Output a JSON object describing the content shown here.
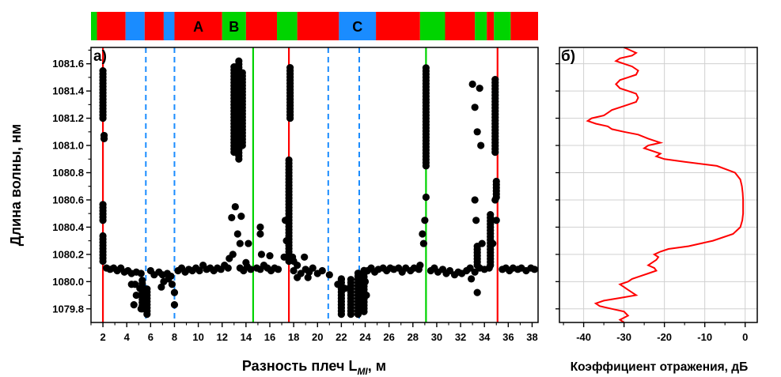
{
  "chart_data": [
    {
      "panel_label": "а)",
      "type": "scatter",
      "xlabel_main": "Разность плеч L",
      "xlabel_sub": "MI",
      "xlabel_unit": ", м",
      "ylabel": "Длина волны, нм",
      "xlim": [
        1.0,
        38.5
      ],
      "ylim": [
        1079.7,
        1081.72
      ],
      "xticks": [
        2,
        4,
        6,
        8,
        10,
        12,
        14,
        16,
        18,
        20,
        22,
        24,
        26,
        28,
        30,
        32,
        34,
        36,
        38
      ],
      "yticks": [
        1079.8,
        1080.0,
        1080.2,
        1080.4,
        1080.6,
        1080.8,
        1081.0,
        1081.2,
        1081.4,
        1081.6
      ],
      "ytick_labels": [
        "1079.8",
        "1080.0",
        "1080.2",
        "1080.4",
        "1080.6",
        "1080.8",
        "1081.0",
        "1081.2",
        "1081.4",
        "1081.6"
      ],
      "grid": false,
      "colors": {
        "red": "#ff0000",
        "green": "#00d400",
        "blue": "#1a8cff",
        "points": "#000000"
      },
      "color_bands": [
        {
          "x0": 1.0,
          "x1": 1.5,
          "color": "green",
          "label": ""
        },
        {
          "x0": 1.5,
          "x1": 3.9,
          "color": "red",
          "label": ""
        },
        {
          "x0": 3.9,
          "x1": 5.5,
          "color": "blue",
          "label": ""
        },
        {
          "x0": 5.5,
          "x1": 7.1,
          "color": "red",
          "label": ""
        },
        {
          "x0": 7.1,
          "x1": 8.0,
          "color": "blue",
          "label": ""
        },
        {
          "x0": 8.0,
          "x1": 12.0,
          "color": "red",
          "label": "A"
        },
        {
          "x0": 12.0,
          "x1": 14.0,
          "color": "green",
          "label": "B"
        },
        {
          "x0": 14.0,
          "x1": 16.6,
          "color": "red",
          "label": ""
        },
        {
          "x0": 16.6,
          "x1": 18.3,
          "color": "green",
          "label": ""
        },
        {
          "x0": 18.3,
          "x1": 21.8,
          "color": "red",
          "label": ""
        },
        {
          "x0": 21.8,
          "x1": 24.9,
          "color": "blue",
          "label": "C"
        },
        {
          "x0": 24.9,
          "x1": 28.6,
          "color": "red",
          "label": ""
        },
        {
          "x0": 28.6,
          "x1": 30.7,
          "color": "green",
          "label": ""
        },
        {
          "x0": 30.7,
          "x1": 33.2,
          "color": "red",
          "label": ""
        },
        {
          "x0": 33.2,
          "x1": 34.2,
          "color": "green",
          "label": ""
        },
        {
          "x0": 34.2,
          "x1": 34.8,
          "color": "red",
          "label": ""
        },
        {
          "x0": 34.8,
          "x1": 36.2,
          "color": "green",
          "label": ""
        },
        {
          "x0": 36.2,
          "x1": 38.5,
          "color": "red",
          "label": ""
        }
      ],
      "vertical_lines": [
        {
          "x": 2.0,
          "color": "red",
          "style": "solid"
        },
        {
          "x": 5.6,
          "color": "blue",
          "style": "dashed"
        },
        {
          "x": 8.0,
          "color": "blue",
          "style": "dashed"
        },
        {
          "x": 14.6,
          "color": "green",
          "style": "solid"
        },
        {
          "x": 17.6,
          "color": "red",
          "style": "solid"
        },
        {
          "x": 20.9,
          "color": "blue",
          "style": "dashed"
        },
        {
          "x": 23.5,
          "color": "blue",
          "style": "dashed"
        },
        {
          "x": 29.1,
          "color": "green",
          "style": "solid"
        },
        {
          "x": 35.1,
          "color": "red",
          "style": "solid"
        }
      ],
      "baseline_points": [
        [
          2.3,
          1080.1
        ],
        [
          2.6,
          1080.09
        ],
        [
          2.9,
          1080.1
        ],
        [
          3.2,
          1080.08
        ],
        [
          3.5,
          1080.1
        ],
        [
          3.8,
          1080.07
        ],
        [
          4.1,
          1080.08
        ],
        [
          4.4,
          1080.06
        ],
        [
          4.8,
          1080.07
        ],
        [
          5.2,
          1080.06
        ],
        [
          6.0,
          1080.08
        ],
        [
          6.3,
          1080.05
        ],
        [
          6.7,
          1080.07
        ],
        [
          7.0,
          1080.05
        ],
        [
          7.4,
          1080.06
        ],
        [
          7.7,
          1080.04
        ],
        [
          8.3,
          1080.08
        ],
        [
          8.6,
          1080.1
        ],
        [
          8.9,
          1080.07
        ],
        [
          9.2,
          1080.09
        ],
        [
          9.5,
          1080.08
        ],
        [
          9.8,
          1080.1
        ],
        [
          10.1,
          1080.08
        ],
        [
          10.4,
          1080.12
        ],
        [
          10.7,
          1080.09
        ],
        [
          11.0,
          1080.1
        ],
        [
          11.3,
          1080.08
        ],
        [
          11.6,
          1080.1
        ],
        [
          11.9,
          1080.09
        ],
        [
          12.2,
          1080.12
        ],
        [
          12.5,
          1080.1
        ],
        [
          13.5,
          1080.1
        ],
        [
          13.8,
          1080.08
        ],
        [
          14.1,
          1080.11
        ],
        [
          14.4,
          1080.09
        ],
        [
          14.9,
          1080.1
        ],
        [
          15.2,
          1080.09
        ],
        [
          15.5,
          1080.12
        ],
        [
          15.8,
          1080.1
        ],
        [
          16.1,
          1080.08
        ],
        [
          16.4,
          1080.1
        ],
        [
          16.7,
          1080.09
        ],
        [
          18.0,
          1080.08
        ],
        [
          18.3,
          1080.12
        ],
        [
          18.6,
          1080.06
        ],
        [
          19.0,
          1080.09
        ],
        [
          19.3,
          1080.07
        ],
        [
          19.6,
          1080.1
        ],
        [
          20.0,
          1080.06
        ],
        [
          20.4,
          1080.08
        ],
        [
          21.0,
          1080.05
        ],
        [
          24.2,
          1080.08
        ],
        [
          24.5,
          1080.1
        ],
        [
          24.8,
          1080.07
        ],
        [
          25.1,
          1080.09
        ],
        [
          25.5,
          1080.1
        ],
        [
          25.8,
          1080.08
        ],
        [
          26.1,
          1080.1
        ],
        [
          26.4,
          1080.09
        ],
        [
          26.8,
          1080.1
        ],
        [
          27.1,
          1080.07
        ],
        [
          27.4,
          1080.1
        ],
        [
          27.8,
          1080.08
        ],
        [
          28.1,
          1080.1
        ],
        [
          28.5,
          1080.09
        ],
        [
          29.5,
          1080.08
        ],
        [
          29.8,
          1080.1
        ],
        [
          30.1,
          1080.07
        ],
        [
          30.5,
          1080.09
        ],
        [
          30.8,
          1080.06
        ],
        [
          31.1,
          1080.08
        ],
        [
          31.5,
          1080.05
        ],
        [
          31.8,
          1080.07
        ],
        [
          32.1,
          1080.06
        ],
        [
          32.5,
          1080.08
        ],
        [
          32.8,
          1080.1
        ],
        [
          33.2,
          1080.07
        ],
        [
          33.6,
          1080.1
        ],
        [
          34.0,
          1080.09
        ],
        [
          34.4,
          1080.1
        ],
        [
          35.5,
          1080.09
        ],
        [
          35.8,
          1080.1
        ],
        [
          36.1,
          1080.08
        ],
        [
          36.4,
          1080.1
        ],
        [
          36.8,
          1080.09
        ],
        [
          37.1,
          1080.1
        ],
        [
          37.5,
          1080.08
        ],
        [
          37.9,
          1080.1
        ],
        [
          38.2,
          1080.09
        ]
      ],
      "extra_points": [
        [
          4.7,
          1079.98
        ],
        [
          5.1,
          1079.95
        ],
        [
          5.3,
          1079.91
        ],
        [
          5.5,
          1079.86
        ],
        [
          4.6,
          1079.83
        ],
        [
          5.2,
          1079.8
        ],
        [
          4.8,
          1079.9
        ],
        [
          4.4,
          1079.98
        ],
        [
          6.9,
          1079.96
        ],
        [
          7.1,
          1080.0
        ],
        [
          7.8,
          1079.98
        ],
        [
          8.0,
          1079.92
        ],
        [
          8.0,
          1079.83
        ],
        [
          7.5,
          1080.02
        ],
        [
          12.9,
          1080.2
        ],
        [
          13.3,
          1080.35
        ],
        [
          13.6,
          1080.48
        ],
        [
          12.8,
          1080.47
        ],
        [
          13.1,
          1080.55
        ],
        [
          13.5,
          1080.28
        ],
        [
          12.6,
          1080.17
        ],
        [
          14.2,
          1080.28
        ],
        [
          14.0,
          1080.14
        ],
        [
          15.3,
          1080.2
        ],
        [
          15.2,
          1080.35
        ],
        [
          15.2,
          1080.4
        ],
        [
          16.0,
          1080.19
        ],
        [
          17.2,
          1080.18
        ],
        [
          17.4,
          1080.3
        ],
        [
          17.3,
          1080.45
        ],
        [
          17.9,
          1080.18
        ],
        [
          18.0,
          1080.15
        ],
        [
          18.3,
          1080.03
        ],
        [
          18.9,
          1080.18
        ],
        [
          19.2,
          1080.03
        ],
        [
          21.7,
          1079.98
        ],
        [
          22.0,
          1080.02
        ],
        [
          22.3,
          1079.95
        ],
        [
          23.7,
          1080.03
        ],
        [
          24.0,
          1080.0
        ],
        [
          24.1,
          1079.9
        ],
        [
          28.6,
          1080.12
        ],
        [
          28.9,
          1080.28
        ],
        [
          29.0,
          1080.45
        ],
        [
          29.1,
          1080.62
        ],
        [
          28.8,
          1080.35
        ],
        [
          32.9,
          1080.02
        ],
        [
          33.4,
          1079.92
        ],
        [
          33.8,
          1080.28
        ],
        [
          33.3,
          1080.45
        ],
        [
          33.2,
          1080.6
        ],
        [
          33.6,
          1081.42
        ],
        [
          33.0,
          1081.45
        ],
        [
          33.2,
          1081.28
        ],
        [
          33.4,
          1081.1
        ],
        [
          33.7,
          1081.0
        ],
        [
          34.9,
          1080.6
        ],
        [
          35.0,
          1080.45
        ],
        [
          34.7,
          1080.28
        ]
      ],
      "columns": [
        {
          "x": 2.0,
          "y0": 1080.15,
          "y1": 1080.35
        },
        {
          "x": 2.0,
          "y0": 1080.45,
          "y1": 1080.57
        },
        {
          "x": 2.0,
          "y0": 1081.2,
          "y1": 1081.56
        },
        {
          "x": 2.1,
          "y0": 1081.05,
          "y1": 1081.08
        },
        {
          "x": 5.3,
          "y0": 1079.8,
          "y1": 1080.02
        },
        {
          "x": 5.7,
          "y0": 1079.76,
          "y1": 1079.96
        },
        {
          "x": 13.0,
          "y0": 1080.95,
          "y1": 1081.6
        },
        {
          "x": 13.4,
          "y0": 1080.9,
          "y1": 1081.62
        },
        {
          "x": 13.7,
          "y0": 1081.0,
          "y1": 1081.55
        },
        {
          "x": 17.6,
          "y0": 1080.15,
          "y1": 1080.9
        },
        {
          "x": 17.7,
          "y0": 1081.2,
          "y1": 1081.58
        },
        {
          "x": 22.0,
          "y0": 1079.76,
          "y1": 1080.03
        },
        {
          "x": 22.8,
          "y0": 1079.76,
          "y1": 1080.02
        },
        {
          "x": 23.4,
          "y0": 1079.76,
          "y1": 1080.08
        },
        {
          "x": 23.9,
          "y0": 1079.78,
          "y1": 1080.1
        },
        {
          "x": 29.1,
          "y0": 1080.85,
          "y1": 1081.58
        },
        {
          "x": 33.4,
          "y0": 1080.12,
          "y1": 1080.28
        },
        {
          "x": 34.5,
          "y0": 1080.12,
          "y1": 1080.5
        },
        {
          "x": 34.9,
          "y0": 1080.95,
          "y1": 1081.5
        },
        {
          "x": 35.0,
          "y0": 1080.62,
          "y1": 1080.75
        }
      ]
    },
    {
      "panel_label": "б)",
      "type": "line",
      "xlabel": "Коэффициент отражения, дБ",
      "xlim": [
        -46,
        3
      ],
      "ylim": [
        1079.7,
        1081.72
      ],
      "xticks": [
        -40,
        -30,
        -20,
        -10,
        0
      ],
      "xtick_labels": [
        "-40",
        "-30",
        "-20",
        "-10",
        "0"
      ],
      "grid": true,
      "line_color": "#ff0000",
      "series": [
        {
          "x": [
            -30,
            -31,
            -29,
            -30,
            -33,
            -36,
            -37,
            -35,
            -31,
            -27,
            -28,
            -29,
            -30,
            -31,
            -29,
            -28,
            -26,
            -24,
            -22,
            -22.5,
            -24,
            -23,
            -22,
            -21.5,
            -22.5,
            -21,
            -19,
            -14,
            -8,
            -3,
            -1.2,
            -0.7,
            -0.5,
            -0.5,
            -0.5,
            -0.6,
            -0.8,
            -1.2,
            -2.5,
            -7,
            -15,
            -20,
            -22,
            -21,
            -23,
            -25,
            -24,
            -21,
            -24,
            -26.5,
            -30,
            -33,
            -34,
            -37,
            -39,
            -38,
            -35,
            -34,
            -33,
            -31,
            -29,
            -27,
            -26.5,
            -27,
            -29,
            -31,
            -32,
            -31,
            -29,
            -27,
            -26.5,
            -28,
            -30,
            -32,
            -31,
            -28,
            -27,
            -30
          ],
          "y": [
            1079.7,
            1079.72,
            1079.75,
            1079.78,
            1079.8,
            1079.82,
            1079.84,
            1079.86,
            1079.88,
            1079.9,
            1079.92,
            1079.94,
            1079.96,
            1079.98,
            1080.0,
            1080.02,
            1080.04,
            1080.06,
            1080.08,
            1080.1,
            1080.12,
            1080.14,
            1080.16,
            1080.18,
            1080.2,
            1080.22,
            1080.24,
            1080.26,
            1080.3,
            1080.35,
            1080.4,
            1080.45,
            1080.5,
            1080.55,
            1080.6,
            1080.65,
            1080.7,
            1080.75,
            1080.8,
            1080.85,
            1080.88,
            1080.9,
            1080.92,
            1080.94,
            1080.96,
            1080.98,
            1081.0,
            1081.02,
            1081.05,
            1081.08,
            1081.1,
            1081.12,
            1081.14,
            1081.16,
            1081.18,
            1081.2,
            1081.22,
            1081.24,
            1081.26,
            1081.28,
            1081.3,
            1081.32,
            1081.35,
            1081.38,
            1081.4,
            1081.42,
            1081.45,
            1081.48,
            1081.5,
            1081.52,
            1081.55,
            1081.58,
            1081.6,
            1081.62,
            1081.64,
            1081.66,
            1081.68,
            1081.72
          ]
        }
      ]
    }
  ]
}
